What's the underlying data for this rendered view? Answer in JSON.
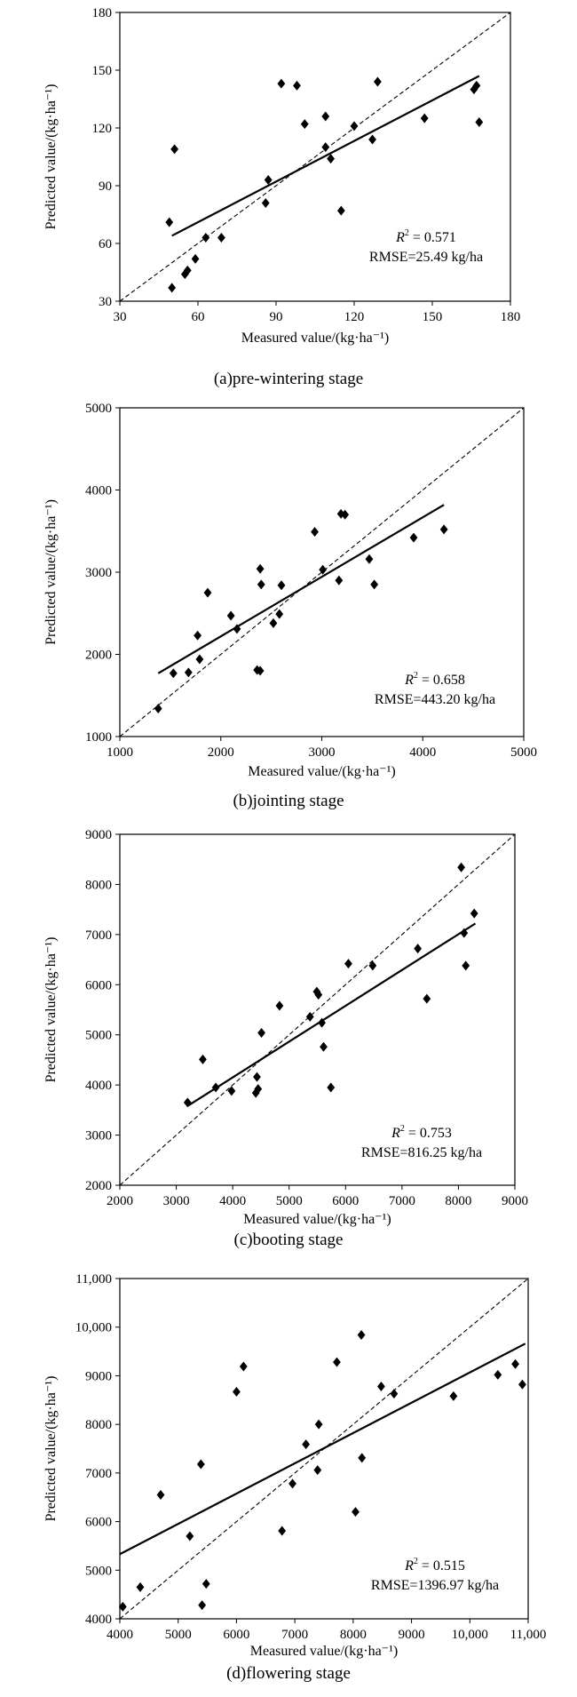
{
  "chart_data": [
    {
      "type": "scatter",
      "caption": "(a)pre-wintering stage",
      "xlabel": "Measured value/(kg·ha⁻¹)",
      "ylabel": "Predicted value/(kg·ha⁻¹)",
      "xlim": [
        30,
        180
      ],
      "ylim": [
        30,
        180
      ],
      "xticks": [
        "30",
        "60",
        "90",
        "120",
        "150",
        "180"
      ],
      "yticks": [
        "30",
        "60",
        "90",
        "120",
        "150",
        "180"
      ],
      "points": [
        [
          49,
          71
        ],
        [
          50,
          37
        ],
        [
          51,
          109
        ],
        [
          55,
          44
        ],
        [
          56,
          46
        ],
        [
          59,
          52
        ],
        [
          63,
          63
        ],
        [
          69,
          63
        ],
        [
          86,
          81
        ],
        [
          87,
          93
        ],
        [
          92,
          143
        ],
        [
          98,
          142
        ],
        [
          101,
          122
        ],
        [
          109,
          126
        ],
        [
          109,
          110
        ],
        [
          111,
          104
        ],
        [
          115,
          77
        ],
        [
          120,
          121
        ],
        [
          127,
          114
        ],
        [
          129,
          144
        ],
        [
          147,
          125
        ],
        [
          166,
          140
        ],
        [
          167,
          142
        ],
        [
          168,
          123
        ]
      ],
      "fit_line": [
        [
          50,
          64
        ],
        [
          168,
          147
        ]
      ],
      "one_to_one": [
        [
          30,
          30
        ],
        [
          180,
          180
        ]
      ],
      "stats": {
        "r2_label": "R",
        "r2_exp": "2",
        "r2_value": " = 0.571",
        "rmse": "RMSE=25.49 kg/ha"
      }
    },
    {
      "type": "scatter",
      "caption": "(b)jointing stage",
      "xlabel": "Measured value/(kg·ha⁻¹)",
      "ylabel": "Predicted value/(kg·ha⁻¹)",
      "xlim": [
        1000,
        5000
      ],
      "ylim": [
        1000,
        5000
      ],
      "xticks": [
        "1000",
        "2000",
        "3000",
        "4000",
        "5000"
      ],
      "yticks": [
        "1000",
        "2000",
        "3000",
        "4000",
        "5000"
      ],
      "points": [
        [
          1380,
          1340
        ],
        [
          1530,
          1770
        ],
        [
          1680,
          1780
        ],
        [
          1770,
          2230
        ],
        [
          1790,
          1940
        ],
        [
          1870,
          2750
        ],
        [
          2100,
          2470
        ],
        [
          2160,
          2310
        ],
        [
          2360,
          1810
        ],
        [
          2390,
          1800
        ],
        [
          2390,
          3040
        ],
        [
          2400,
          2850
        ],
        [
          2520,
          2380
        ],
        [
          2580,
          2490
        ],
        [
          2600,
          2840
        ],
        [
          2930,
          3490
        ],
        [
          3010,
          3030
        ],
        [
          3170,
          2900
        ],
        [
          3190,
          3710
        ],
        [
          3230,
          3700
        ],
        [
          3470,
          3160
        ],
        [
          3520,
          2850
        ],
        [
          3910,
          3420
        ],
        [
          4210,
          3520
        ]
      ],
      "fit_line": [
        [
          1380,
          1770
        ],
        [
          4210,
          3820
        ]
      ],
      "one_to_one": [
        [
          1000,
          1000
        ],
        [
          5000,
          5000
        ]
      ],
      "stats": {
        "r2_label": "R",
        "r2_exp": "2",
        "r2_value": " = 0.658",
        "rmse": "RMSE=443.20 kg/ha"
      }
    },
    {
      "type": "scatter",
      "caption": "(c)booting stage",
      "xlabel": "Measured value/(kg·ha⁻¹)",
      "ylabel": "Predicted value/(kg·ha⁻¹)",
      "xlim": [
        2000,
        9000
      ],
      "ylim": [
        2000,
        9000
      ],
      "xticks": [
        "2000",
        "3000",
        "4000",
        "5000",
        "6000",
        "7000",
        "8000",
        "9000"
      ],
      "yticks": [
        "2000",
        "3000",
        "4000",
        "5000",
        "6000",
        "7000",
        "8000",
        "9000"
      ],
      "points": [
        [
          3200,
          3650
        ],
        [
          3470,
          4510
        ],
        [
          3700,
          3950
        ],
        [
          3980,
          3880
        ],
        [
          4410,
          3840
        ],
        [
          4430,
          4160
        ],
        [
          4450,
          3920
        ],
        [
          4510,
          5040
        ],
        [
          4830,
          5580
        ],
        [
          5370,
          5360
        ],
        [
          5490,
          5860
        ],
        [
          5520,
          5800
        ],
        [
          5580,
          5240
        ],
        [
          5610,
          4760
        ],
        [
          5740,
          3950
        ],
        [
          6050,
          6420
        ],
        [
          6480,
          6380
        ],
        [
          7280,
          6720
        ],
        [
          7440,
          5720
        ],
        [
          8050,
          8340
        ],
        [
          8100,
          7030
        ],
        [
          8130,
          6380
        ],
        [
          8280,
          7420
        ]
      ],
      "fit_line": [
        [
          3200,
          3580
        ],
        [
          8300,
          7220
        ]
      ],
      "one_to_one": [
        [
          2000,
          2000
        ],
        [
          9000,
          9000
        ]
      ],
      "stats": {
        "r2_label": "R",
        "r2_exp": "2",
        "r2_value": " = 0.753",
        "rmse": "RMSE=816.25 kg/ha"
      }
    },
    {
      "type": "scatter",
      "caption": "(d)flowering stage",
      "xlabel": "Measured value/(kg·ha⁻¹)",
      "ylabel": "Predicted value/(kg·ha⁻¹)",
      "xlim": [
        4000,
        11000
      ],
      "ylim": [
        4000,
        11000
      ],
      "xticks": [
        "4000",
        "5000",
        "6000",
        "7000",
        "8000",
        "9000",
        "10,000",
        "11,000"
      ],
      "yticks": [
        "4000",
        "5000",
        "6000",
        "7000",
        "8000",
        "9000",
        "10,000",
        "11,000"
      ],
      "points": [
        [
          4050,
          4250
        ],
        [
          4350,
          4650
        ],
        [
          4700,
          6550
        ],
        [
          5200,
          5700
        ],
        [
          5390,
          7180
        ],
        [
          5410,
          4280
        ],
        [
          5480,
          4720
        ],
        [
          6000,
          8670
        ],
        [
          6120,
          9190
        ],
        [
          6780,
          5810
        ],
        [
          6960,
          6780
        ],
        [
          7190,
          7590
        ],
        [
          7390,
          7060
        ],
        [
          7410,
          8000
        ],
        [
          7720,
          9280
        ],
        [
          8040,
          6200
        ],
        [
          8140,
          9840
        ],
        [
          8150,
          7310
        ],
        [
          8480,
          8780
        ],
        [
          8700,
          8630
        ],
        [
          9720,
          8580
        ],
        [
          10480,
          9020
        ],
        [
          10780,
          9240
        ],
        [
          10900,
          8820
        ]
      ],
      "fit_line": [
        [
          4000,
          5330
        ],
        [
          10950,
          9660
        ]
      ],
      "one_to_one": [
        [
          4000,
          4000
        ],
        [
          11000,
          11000
        ]
      ],
      "stats": {
        "r2_label": "R",
        "r2_exp": "2",
        "r2_value": " = 0.515",
        "rmse": "RMSE=1396.97 kg/ha"
      }
    }
  ]
}
